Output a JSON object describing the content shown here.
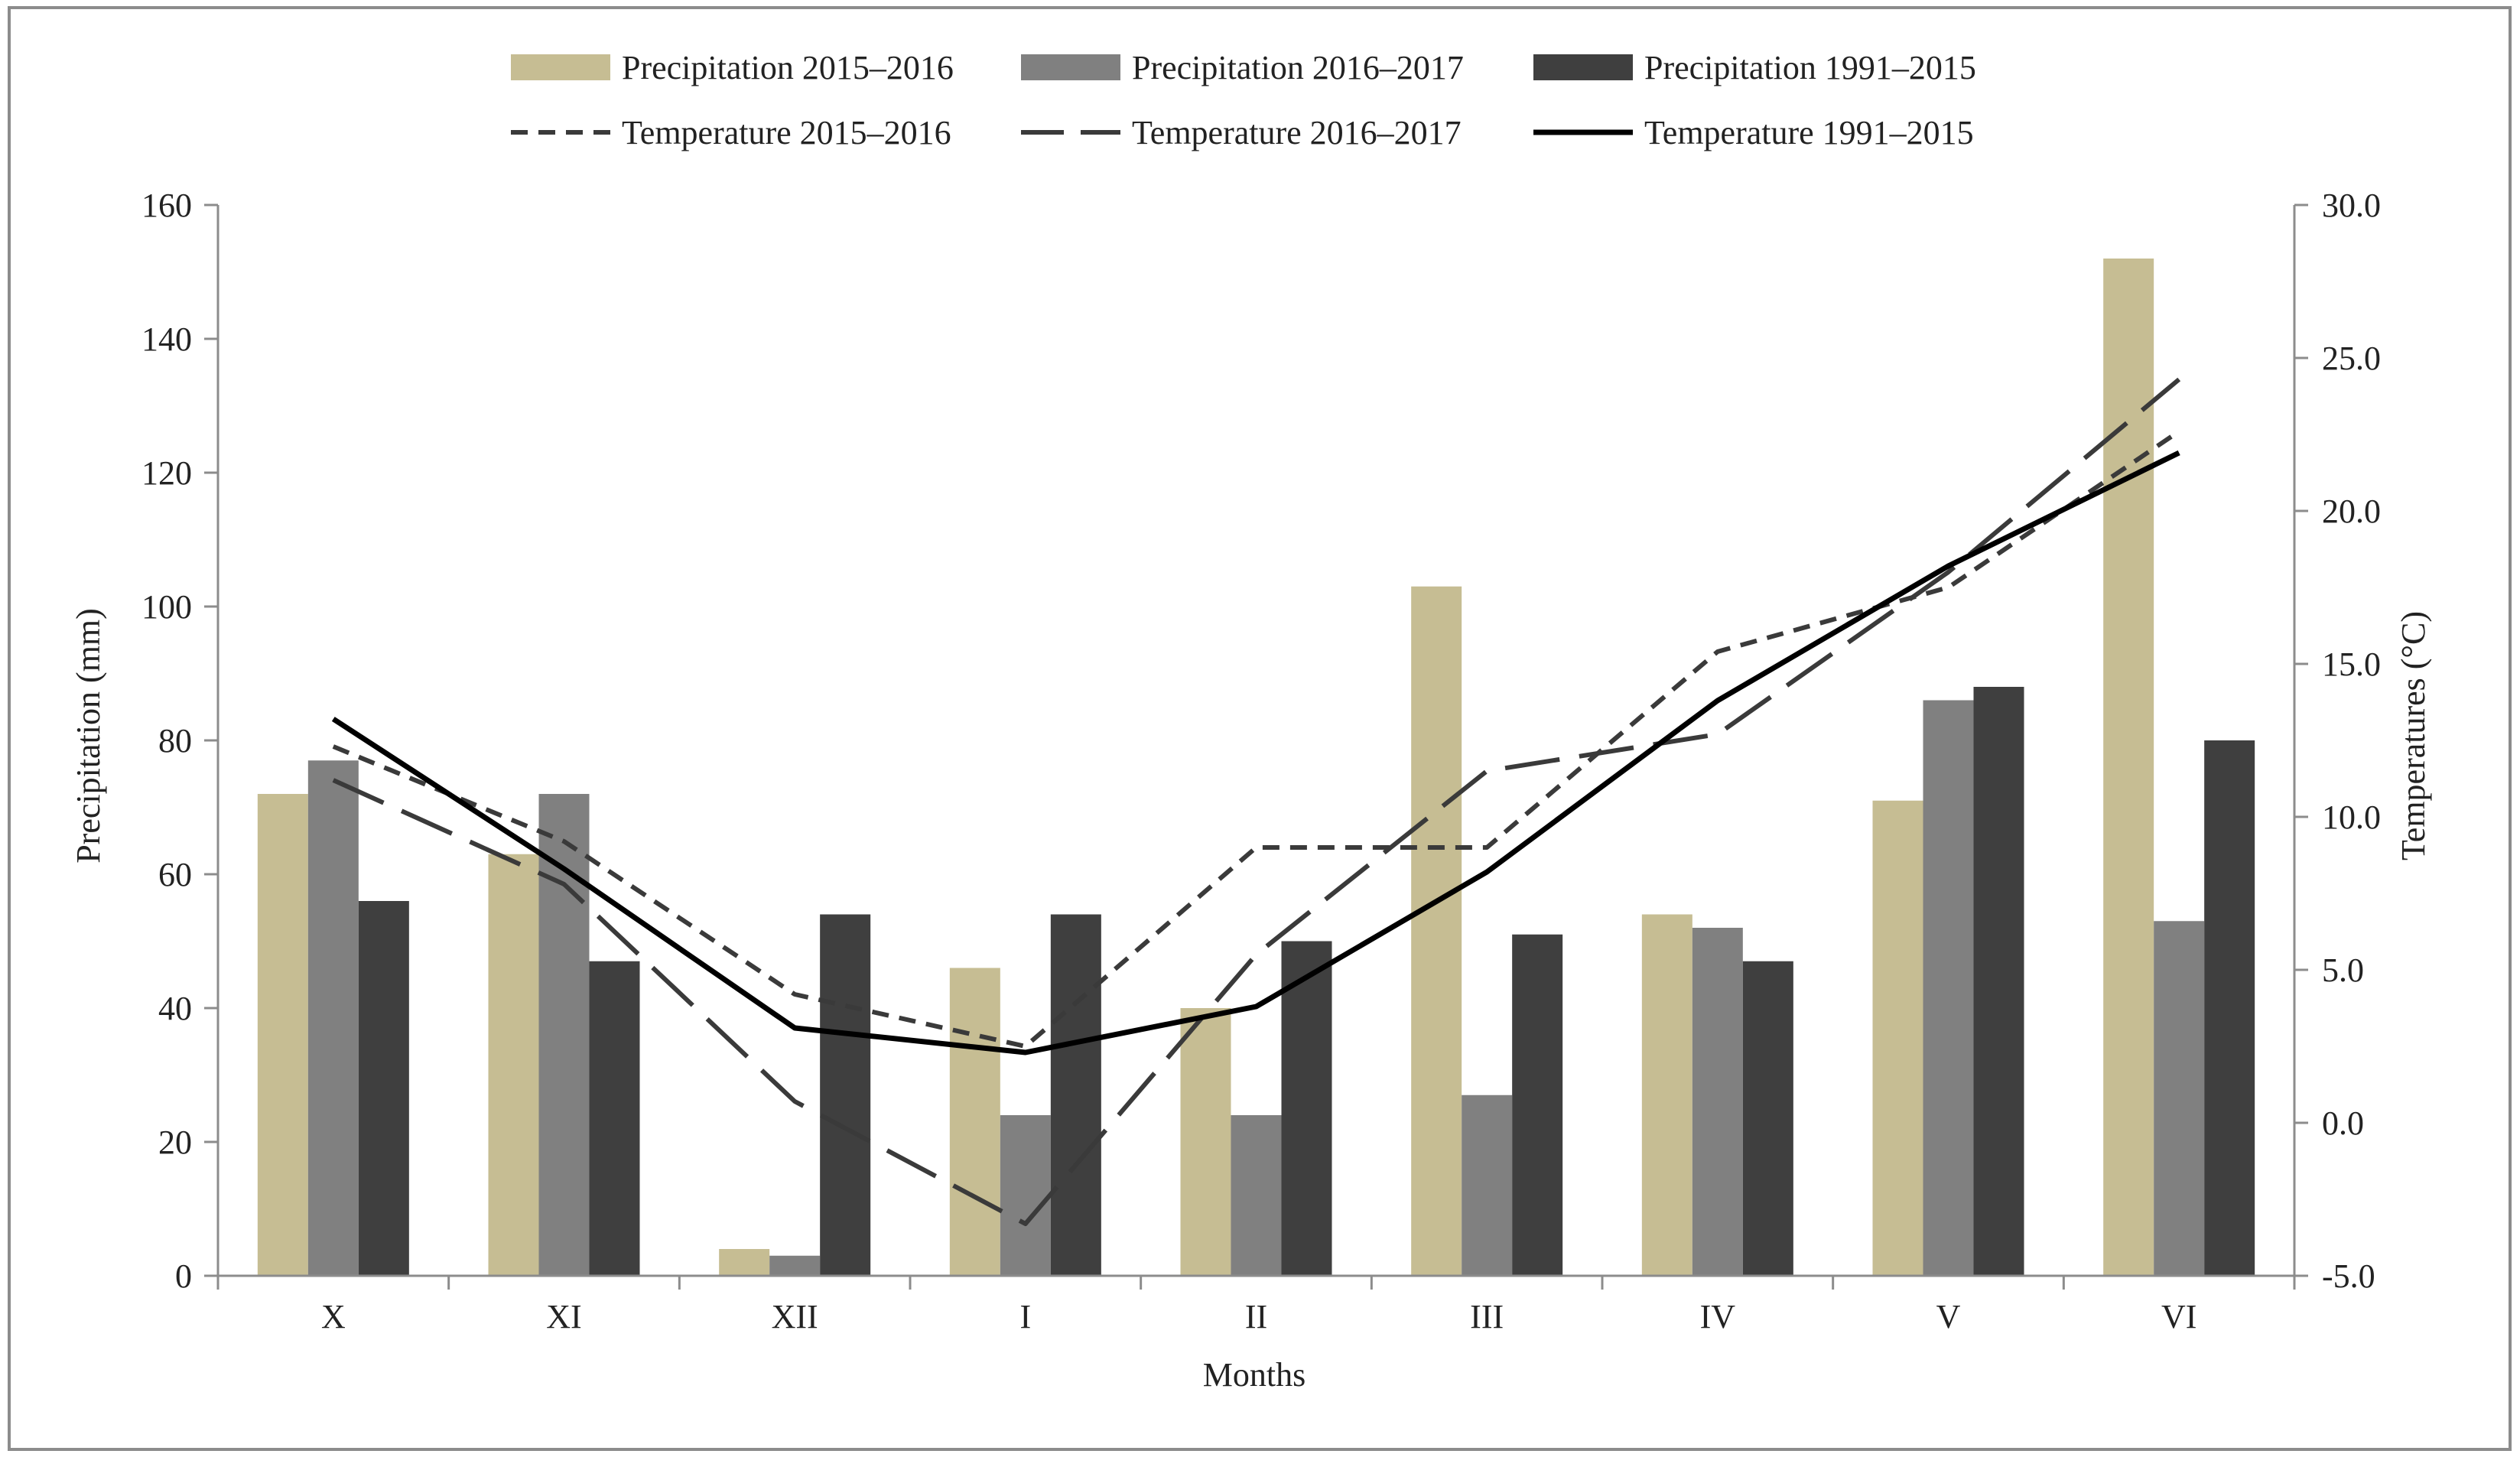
{
  "colors": {
    "precip_2015_2016": "#c6bd93",
    "precip_2016_2017": "#808080",
    "precip_1991_2015": "#3f3f3f",
    "temp_2015_2016": "#3a3a3a",
    "temp_2016_2017": "#3a3a3a",
    "temp_1991_2015": "#000000",
    "axis": "#8c8c8c",
    "frame": "#8c8c8c"
  },
  "chart_data": {
    "type": "bar",
    "categories": [
      "X",
      "XI",
      "XII",
      "I",
      "II",
      "III",
      "IV",
      "V",
      "VI"
    ],
    "xlabel": "Months",
    "ylabel": "Precipitation (mm)",
    "y2label": "Temperatures (°C)",
    "ylim": [
      0,
      160
    ],
    "y2lim": [
      -5.0,
      30.0
    ],
    "yticks": [
      "0",
      "20",
      "40",
      "60",
      "80",
      "100",
      "120",
      "140",
      "160"
    ],
    "y2ticks": [
      "-5.0",
      "0.0",
      "5.0",
      "10.0",
      "15.0",
      "20.0",
      "25.0",
      "30.0"
    ],
    "grid": false,
    "legend_position": "top-center",
    "series": [
      {
        "name": "Precipitation 2015–2016",
        "kind": "bar",
        "axis": "left",
        "style": "precip_2015_2016",
        "values": [
          72,
          63,
          4,
          46,
          40,
          103,
          54,
          71,
          152
        ]
      },
      {
        "name": "Precipitation 2016–2017",
        "kind": "bar",
        "axis": "left",
        "style": "precip_2016_2017",
        "values": [
          77,
          72,
          3,
          24,
          24,
          27,
          52,
          86,
          53
        ]
      },
      {
        "name": "Precipitation 1991–2015",
        "kind": "bar",
        "axis": "left",
        "style": "precip_1991_2015",
        "values": [
          56,
          47,
          54,
          54,
          50,
          51,
          47,
          88,
          80
        ]
      },
      {
        "name": "Temperature 2015–2016",
        "kind": "line",
        "axis": "right",
        "style": "temp_2015_2016",
        "dash": "short",
        "values": [
          12.3,
          9.2,
          4.2,
          2.5,
          9.0,
          9.0,
          15.4,
          17.5,
          22.6
        ]
      },
      {
        "name": "Temperature 2016–2017",
        "kind": "line",
        "axis": "right",
        "style": "temp_2016_2017",
        "dash": "long",
        "values": [
          11.2,
          7.8,
          0.7,
          -3.3,
          5.5,
          11.5,
          12.7,
          18.0,
          24.3
        ]
      },
      {
        "name": "Temperature 1991–2015",
        "kind": "line",
        "axis": "right",
        "style": "temp_1991_2015",
        "dash": "solid",
        "values": [
          13.2,
          8.3,
          3.1,
          2.3,
          3.8,
          8.2,
          13.8,
          18.2,
          21.9
        ]
      }
    ]
  }
}
